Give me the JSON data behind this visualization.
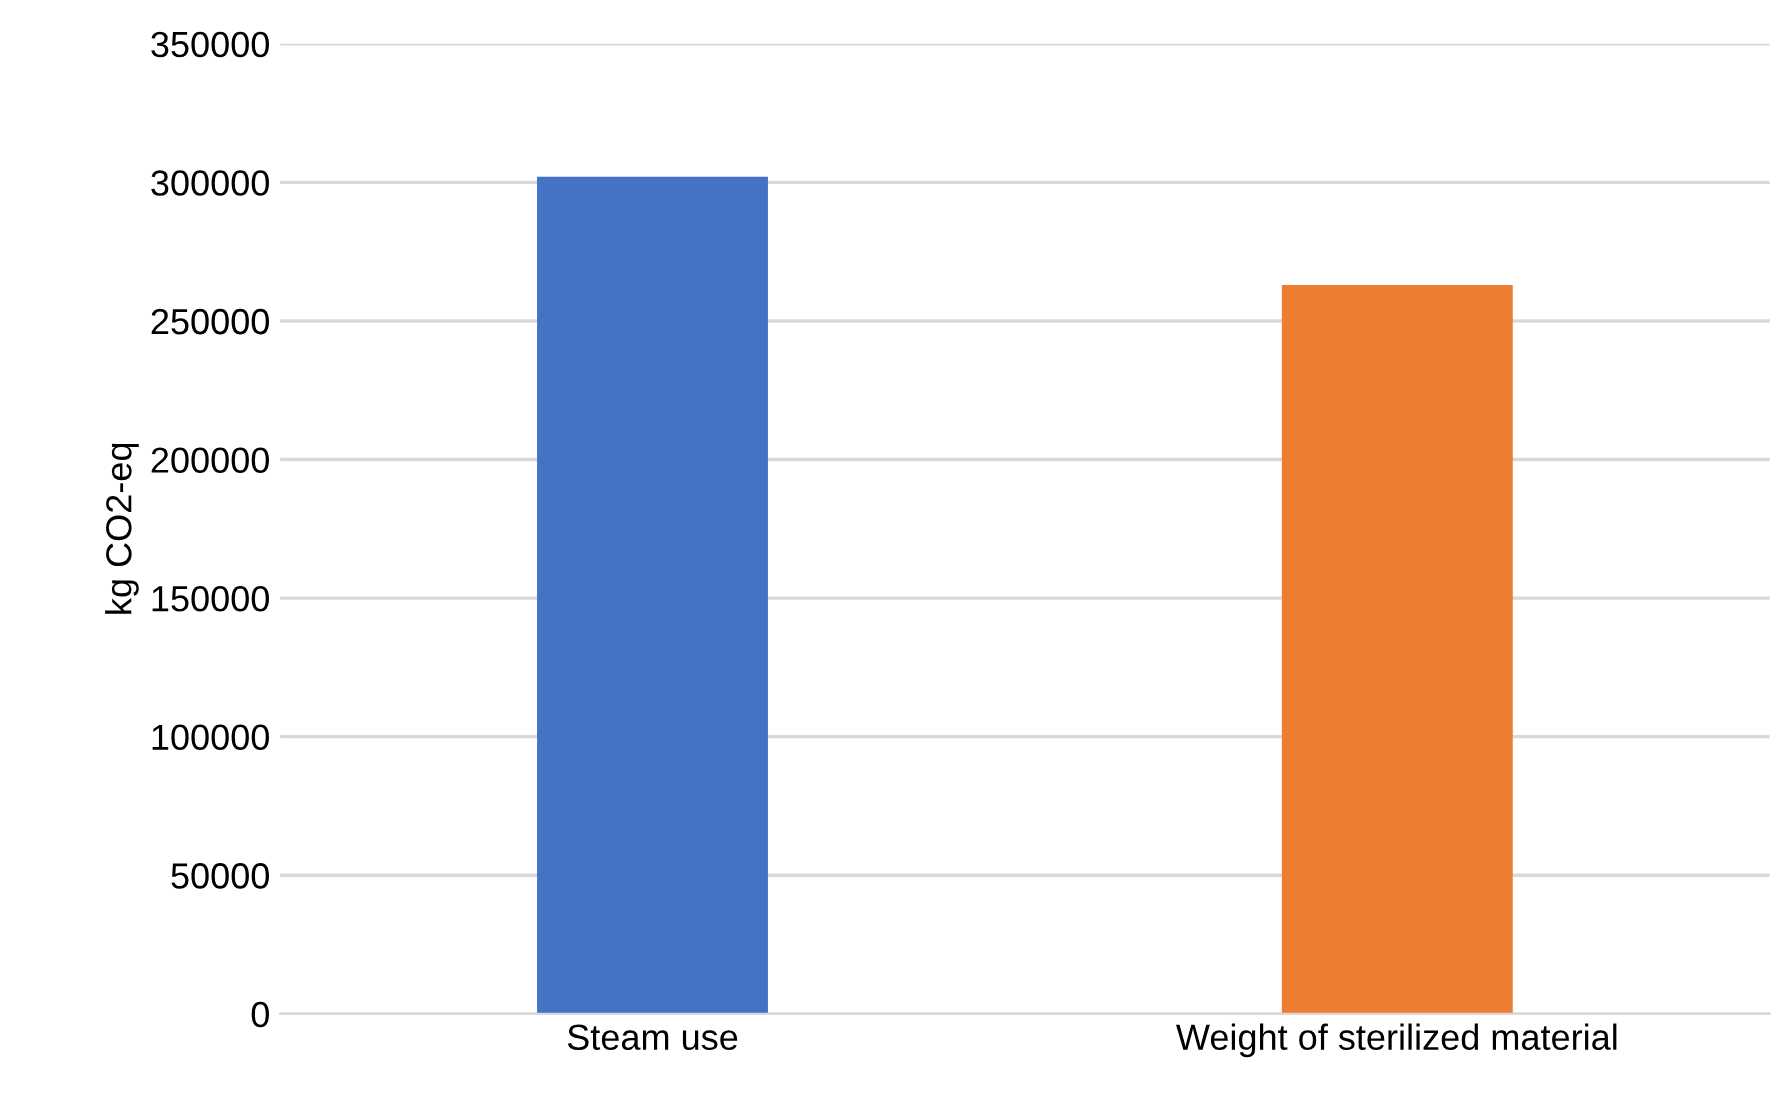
{
  "chart_data": {
    "type": "bar",
    "ylabel": "kg CO2-eq",
    "categories": [
      "Steam use",
      "Weight of sterilized material"
    ],
    "values": [
      302000,
      263000
    ],
    "colors": [
      "#4472c4",
      "#ed7d31"
    ],
    "ylim": [
      0,
      350000
    ],
    "yticks": [
      0,
      50000,
      100000,
      150000,
      200000,
      250000,
      300000,
      350000
    ],
    "grid": "y"
  }
}
